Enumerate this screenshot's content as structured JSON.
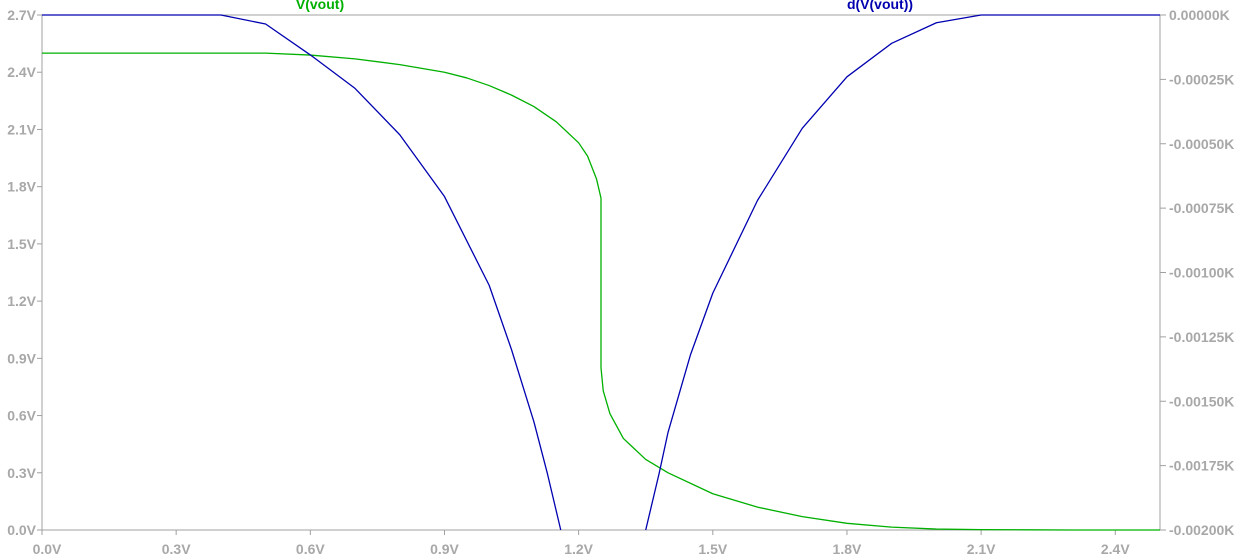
{
  "chart_data": {
    "type": "line",
    "xlim": [
      0,
      2.5
    ],
    "ylim_left": [
      0,
      2.7
    ],
    "ylim_right": [
      -0.002,
      0
    ],
    "x_ticks": [
      "0.0V",
      "0.3V",
      "0.6V",
      "0.9V",
      "1.2V",
      "1.5V",
      "1.8V",
      "2.1V",
      "2.4V"
    ],
    "x_tick_values": [
      0,
      0.3,
      0.6,
      0.9,
      1.2,
      1.5,
      1.8,
      2.1,
      2.4
    ],
    "y_left_ticks": [
      "0.0V",
      "0.3V",
      "0.6V",
      "0.9V",
      "1.2V",
      "1.5V",
      "1.8V",
      "2.1V",
      "2.4V",
      "2.7V"
    ],
    "y_left_tick_values": [
      0,
      0.3,
      0.6,
      0.9,
      1.2,
      1.5,
      1.8,
      2.1,
      2.4,
      2.7
    ],
    "y_right_ticks": [
      "0.00000K",
      "-0.00025K",
      "-0.00050K",
      "-0.00075K",
      "-0.00100K",
      "-0.00125K",
      "-0.00150K",
      "-0.00175K",
      "-0.00200K"
    ],
    "y_right_tick_values": [
      0,
      -0.00025,
      -0.0005,
      -0.00075,
      -0.001,
      -0.00125,
      -0.0015,
      -0.00175,
      -0.002
    ],
    "grid": false,
    "series": [
      {
        "name": "V(vout)",
        "axis": "left",
        "color": "#00b000",
        "x": [
          0,
          0.1,
          0.2,
          0.3,
          0.4,
          0.5,
          0.6,
          0.7,
          0.8,
          0.9,
          0.95,
          1.0,
          1.05,
          1.1,
          1.15,
          1.2,
          1.22,
          1.24,
          1.25,
          1.25,
          1.255,
          1.27,
          1.3,
          1.35,
          1.4,
          1.5,
          1.6,
          1.7,
          1.8,
          1.9,
          2.0,
          2.1,
          2.2,
          2.3,
          2.4,
          2.5
        ],
        "values": [
          2.5,
          2.5,
          2.5,
          2.5,
          2.5,
          2.5,
          2.49,
          2.47,
          2.44,
          2.4,
          2.37,
          2.33,
          2.28,
          2.22,
          2.14,
          2.03,
          1.96,
          1.84,
          1.74,
          0.85,
          0.73,
          0.61,
          0.48,
          0.37,
          0.3,
          0.19,
          0.12,
          0.07,
          0.035,
          0.015,
          0.005,
          0.002,
          0.001,
          0.0,
          0.0,
          0.0
        ]
      },
      {
        "name": "d(V(vout))",
        "axis": "right",
        "color": "#0000b0",
        "x": [
          0,
          0.35,
          0.4,
          0.5,
          0.6,
          0.7,
          0.8,
          0.9,
          1.0,
          1.05,
          1.1,
          1.13,
          1.16,
          null,
          1.35,
          1.38,
          1.4,
          1.45,
          1.5,
          1.6,
          1.7,
          1.8,
          1.9,
          2.0,
          2.1,
          2.2,
          2.3,
          2.4,
          2.5
        ],
        "values": [
          0,
          0,
          0,
          -3.5e-05,
          -0.000155,
          -0.000285,
          -0.000465,
          -0.000705,
          -0.00105,
          -0.0013,
          -0.00158,
          -0.00178,
          -0.002,
          null,
          -0.002,
          -0.00178,
          -0.00162,
          -0.00132,
          -0.00108,
          -0.00072,
          -0.00044,
          -0.00024,
          -0.00011,
          -3e-05,
          0,
          0,
          0,
          0,
          0
        ]
      }
    ]
  }
}
